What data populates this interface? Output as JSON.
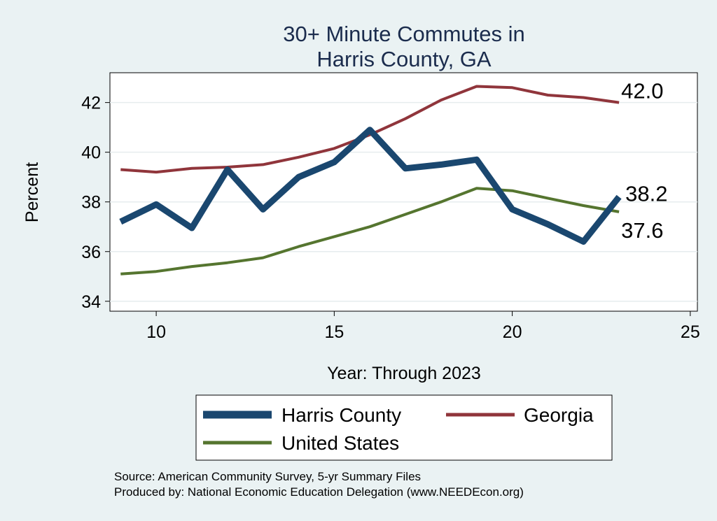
{
  "chart_data": {
    "type": "line",
    "title": [
      "30+ Minute Commutes in",
      "Harris County, GA"
    ],
    "xlabel": "Year: Through 2023",
    "ylabel": "Percent",
    "xlim": [
      8.7,
      25.2
    ],
    "ylim": [
      33.6,
      43.2
    ],
    "xticks": [
      10,
      15,
      20,
      25
    ],
    "yticks": [
      34,
      36,
      38,
      40,
      42
    ],
    "grid": true,
    "series": [
      {
        "name": "Harris County",
        "color": "#1a476f",
        "x": [
          9,
          10,
          11,
          12,
          13,
          14,
          15,
          16,
          17,
          18,
          19,
          20,
          21,
          22,
          23
        ],
        "values": [
          37.2,
          37.9,
          36.95,
          39.3,
          37.7,
          39.0,
          39.6,
          40.9,
          39.35,
          39.5,
          39.7,
          37.7,
          37.1,
          36.4,
          38.2
        ],
        "end_label": "38.2"
      },
      {
        "name": "Georgia",
        "color": "#90353b",
        "x": [
          9,
          10,
          11,
          12,
          13,
          14,
          15,
          16,
          17,
          18,
          19,
          20,
          21,
          22,
          23
        ],
        "values": [
          39.3,
          39.2,
          39.35,
          39.4,
          39.5,
          39.8,
          40.15,
          40.7,
          41.35,
          42.1,
          42.65,
          42.6,
          42.3,
          42.2,
          42.0
        ],
        "end_label": "42.0"
      },
      {
        "name": "United States",
        "color": "#55752f",
        "x": [
          9,
          10,
          11,
          12,
          13,
          14,
          15,
          16,
          17,
          18,
          19,
          20,
          21,
          22,
          23
        ],
        "values": [
          35.1,
          35.2,
          35.4,
          35.55,
          35.75,
          36.2,
          36.6,
          37.0,
          37.5,
          38.0,
          38.55,
          38.45,
          38.15,
          37.85,
          37.6
        ],
        "end_label": "37.6"
      }
    ],
    "legend_position": "bottom",
    "source_lines": [
      "Source: American Community Survey, 5-yr Summary Files",
      "Produced by: National Economic Education Delegation (www.NEEDEcon.org)"
    ]
  }
}
